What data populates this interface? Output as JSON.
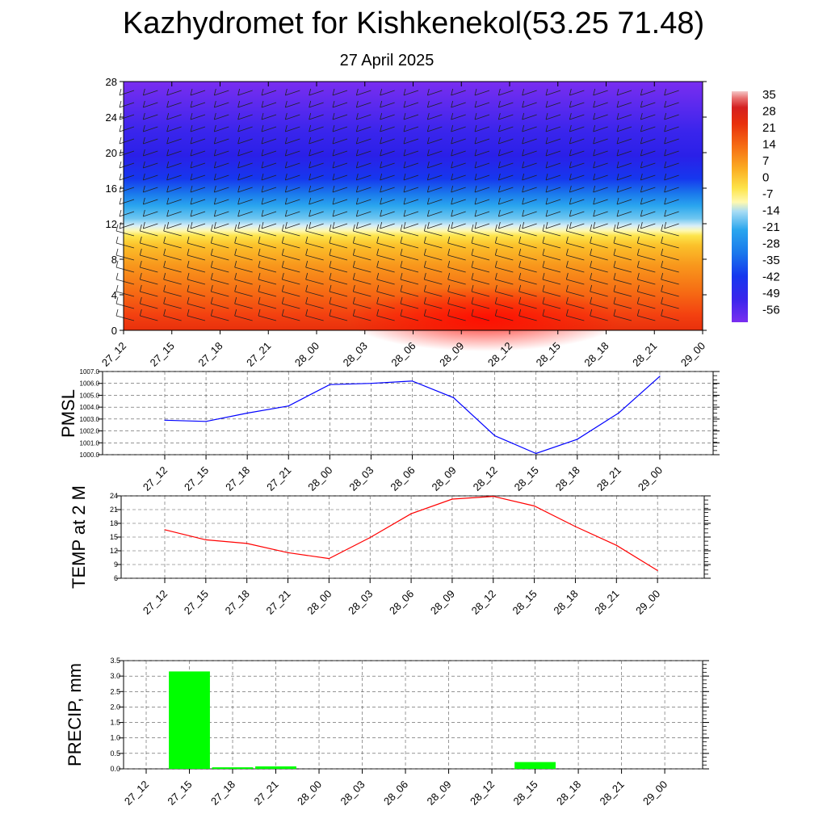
{
  "title": "Kazhydromet for Kishkenekol(53.25 71.48)",
  "date": "27 April 2025",
  "time_labels": [
    "27_12",
    "27_15",
    "27_18",
    "27_21",
    "28_00",
    "28_03",
    "28_06",
    "28_09",
    "28_12",
    "28_15",
    "28_18",
    "28_21",
    "29_00"
  ],
  "colors": {
    "pmsl_line": "#0000ff",
    "temp_line": "#ff0000",
    "precip_bar": "#00ff00",
    "grid": "#555555"
  },
  "chart_data": [
    {
      "type": "heatmap",
      "name": "cross-section",
      "x": [
        "27_12",
        "27_15",
        "27_18",
        "27_21",
        "28_00",
        "28_03",
        "28_06",
        "28_09",
        "28_12",
        "28_15",
        "28_18",
        "28_21",
        "29_00"
      ],
      "ylim": [
        0,
        28
      ],
      "yticks": [
        0,
        4,
        8,
        12,
        16,
        20,
        24,
        28
      ],
      "colorbar_labels": [
        "35",
        "28",
        "21",
        "14",
        "7",
        "0",
        "-7",
        "-14",
        "-21",
        "-28",
        "-35",
        "-42",
        "-49",
        "-56"
      ],
      "colorbar_range": [
        -63,
        42
      ],
      "wind_barbs": true
    },
    {
      "type": "line",
      "ylabel": "PMSL",
      "x": [
        "27_12",
        "27_15",
        "27_18",
        "27_21",
        "28_00",
        "28_03",
        "28_06",
        "28_09",
        "28_12",
        "28_15",
        "28_18",
        "28_21",
        "29_00"
      ],
      "values": [
        1002.9,
        1002.8,
        1003.5,
        1004.1,
        1005.9,
        1006.0,
        1006.2,
        1004.8,
        1001.6,
        1000.1,
        1001.3,
        1003.5,
        1006.6
      ],
      "ylim": [
        1000,
        1007
      ],
      "yticks": [
        "1000.0",
        "1001.0",
        "1002.0",
        "1003.0",
        "1004.0",
        "1005.0",
        "1006.0",
        "1007.0"
      ],
      "grid": true
    },
    {
      "type": "line",
      "ylabel": "TEMP at 2 M",
      "x": [
        "27_12",
        "27_15",
        "27_18",
        "27_21",
        "28_00",
        "28_03",
        "28_06",
        "28_09",
        "28_12",
        "28_15",
        "28_18",
        "28_21",
        "29_00"
      ],
      "values": [
        16.6,
        14.4,
        13.6,
        11.6,
        10.3,
        14.9,
        20.1,
        23.3,
        23.9,
        21.8,
        17.3,
        13.2,
        7.7
      ],
      "ylim": [
        6,
        24
      ],
      "yticks": [
        "6",
        "9",
        "12",
        "15",
        "18",
        "21",
        "24"
      ],
      "grid": true
    },
    {
      "type": "bar",
      "ylabel": "PRECIP, mm",
      "categories": [
        "27_12",
        "27_15",
        "27_18",
        "27_21",
        "28_00",
        "28_03",
        "28_06",
        "28_09",
        "28_12",
        "28_15",
        "28_18",
        "28_21",
        "29_00"
      ],
      "values": [
        0,
        3.15,
        0.05,
        0.08,
        0,
        0,
        0,
        0,
        0,
        0.22,
        0,
        0,
        0
      ],
      "ylim": [
        0,
        3.5
      ],
      "yticks": [
        "0.0",
        "0.5",
        "1.0",
        "1.5",
        "2.0",
        "2.5",
        "3.0",
        "3.5"
      ],
      "grid": true
    }
  ]
}
